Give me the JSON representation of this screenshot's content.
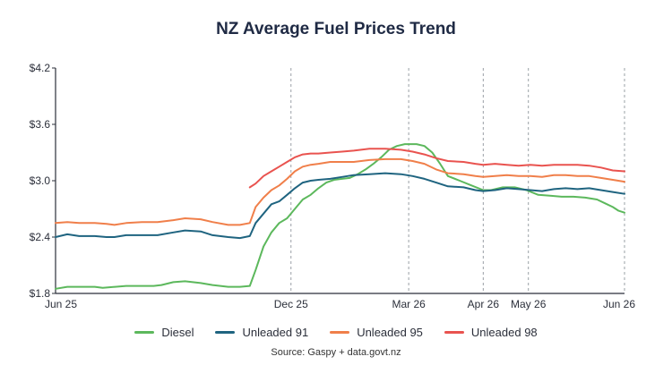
{
  "colors": {
    "diesel": "#5cb85c",
    "unleaded91": "#1f6480",
    "unleaded95": "#f07f4a",
    "unleaded98": "#e9534f",
    "grid": "#9aa0a6",
    "axis": "#2b2f3a"
  },
  "chart_data": {
    "type": "line",
    "title": "NZ Average Fuel Prices Trend",
    "source": "Source: Gaspy + data.govt.nz",
    "xlabel": "",
    "ylabel": "",
    "x_tick_labels": [
      "Jun 25",
      "Dec 25",
      "Mar 26",
      "Apr 26",
      "May 26",
      "Jun 26"
    ],
    "x_tick_positions": [
      0,
      6,
      9,
      10.9,
      12.05,
      14.5
    ],
    "xlim": [
      0,
      14.5
    ],
    "y_tick_labels": [
      "$1.8",
      "$2.4",
      "$3.0",
      "$3.6",
      "$4.2"
    ],
    "y_ticks": [
      1.8,
      2.4,
      3.0,
      3.6,
      4.2
    ],
    "ylim": [
      1.8,
      4.2
    ],
    "grid": "vertical dashed",
    "legend_position": "bottom",
    "series": [
      {
        "name": "Diesel",
        "color_key": "diesel",
        "points": [
          [
            0,
            1.85
          ],
          [
            0.3,
            1.87
          ],
          [
            1,
            1.87
          ],
          [
            1.2,
            1.86
          ],
          [
            1.8,
            1.88
          ],
          [
            2.5,
            1.88
          ],
          [
            2.7,
            1.89
          ],
          [
            3,
            1.92
          ],
          [
            3.3,
            1.93
          ],
          [
            3.7,
            1.91
          ],
          [
            4,
            1.89
          ],
          [
            4.4,
            1.87
          ],
          [
            4.7,
            1.87
          ],
          [
            4.95,
            1.88
          ],
          [
            5.1,
            2.05
          ],
          [
            5.3,
            2.3
          ],
          [
            5.5,
            2.45
          ],
          [
            5.7,
            2.55
          ],
          [
            5.9,
            2.6
          ],
          [
            6.1,
            2.7
          ],
          [
            6.3,
            2.8
          ],
          [
            6.5,
            2.85
          ],
          [
            6.7,
            2.92
          ],
          [
            6.9,
            2.98
          ],
          [
            7.1,
            3.01
          ],
          [
            7.3,
            3.02
          ],
          [
            7.5,
            3.03
          ],
          [
            7.7,
            3.07
          ],
          [
            7.9,
            3.12
          ],
          [
            8.1,
            3.18
          ],
          [
            8.3,
            3.25
          ],
          [
            8.5,
            3.33
          ],
          [
            8.7,
            3.37
          ],
          [
            8.9,
            3.39
          ],
          [
            9.2,
            3.39
          ],
          [
            9.4,
            3.37
          ],
          [
            9.6,
            3.3
          ],
          [
            9.8,
            3.18
          ],
          [
            10,
            3.05
          ],
          [
            10.3,
            3.0
          ],
          [
            10.6,
            2.95
          ],
          [
            10.9,
            2.9
          ],
          [
            11.1,
            2.9
          ],
          [
            11.4,
            2.93
          ],
          [
            11.7,
            2.93
          ],
          [
            12,
            2.9
          ],
          [
            12.3,
            2.85
          ],
          [
            12.6,
            2.84
          ],
          [
            12.9,
            2.83
          ],
          [
            13.2,
            2.83
          ],
          [
            13.5,
            2.82
          ],
          [
            13.8,
            2.8
          ],
          [
            14,
            2.76
          ],
          [
            14.2,
            2.72
          ],
          [
            14.35,
            2.68
          ],
          [
            14.5,
            2.66
          ]
        ]
      },
      {
        "name": "Unleaded 91",
        "color_key": "unleaded91",
        "points": [
          [
            0,
            2.4
          ],
          [
            0.3,
            2.43
          ],
          [
            0.6,
            2.41
          ],
          [
            1,
            2.41
          ],
          [
            1.3,
            2.4
          ],
          [
            1.5,
            2.4
          ],
          [
            1.8,
            2.42
          ],
          [
            2.2,
            2.42
          ],
          [
            2.6,
            2.42
          ],
          [
            3,
            2.45
          ],
          [
            3.3,
            2.47
          ],
          [
            3.7,
            2.46
          ],
          [
            4,
            2.42
          ],
          [
            4.4,
            2.4
          ],
          [
            4.7,
            2.39
          ],
          [
            4.95,
            2.41
          ],
          [
            5.1,
            2.55
          ],
          [
            5.3,
            2.65
          ],
          [
            5.5,
            2.75
          ],
          [
            5.7,
            2.78
          ],
          [
            5.9,
            2.85
          ],
          [
            6.1,
            2.92
          ],
          [
            6.3,
            2.98
          ],
          [
            6.5,
            3.0
          ],
          [
            6.7,
            3.01
          ],
          [
            7,
            3.02
          ],
          [
            7.3,
            3.04
          ],
          [
            7.6,
            3.06
          ],
          [
            8,
            3.07
          ],
          [
            8.4,
            3.08
          ],
          [
            8.8,
            3.07
          ],
          [
            9.1,
            3.05
          ],
          [
            9.4,
            3.02
          ],
          [
            9.7,
            2.98
          ],
          [
            10,
            2.94
          ],
          [
            10.4,
            2.93
          ],
          [
            10.7,
            2.9
          ],
          [
            10.9,
            2.89
          ],
          [
            11.2,
            2.9
          ],
          [
            11.5,
            2.92
          ],
          [
            11.8,
            2.91
          ],
          [
            12.1,
            2.9
          ],
          [
            12.4,
            2.89
          ],
          [
            12.7,
            2.91
          ],
          [
            13,
            2.92
          ],
          [
            13.3,
            2.91
          ],
          [
            13.6,
            2.92
          ],
          [
            13.9,
            2.9
          ],
          [
            14.2,
            2.88
          ],
          [
            14.5,
            2.86
          ]
        ]
      },
      {
        "name": "Unleaded 95",
        "color_key": "unleaded95",
        "points": [
          [
            0,
            2.55
          ],
          [
            0.3,
            2.56
          ],
          [
            0.6,
            2.55
          ],
          [
            1,
            2.55
          ],
          [
            1.3,
            2.54
          ],
          [
            1.5,
            2.53
          ],
          [
            1.8,
            2.55
          ],
          [
            2.2,
            2.56
          ],
          [
            2.6,
            2.56
          ],
          [
            3,
            2.58
          ],
          [
            3.3,
            2.6
          ],
          [
            3.7,
            2.59
          ],
          [
            4,
            2.56
          ],
          [
            4.4,
            2.53
          ],
          [
            4.7,
            2.53
          ],
          [
            4.95,
            2.55
          ],
          [
            5.1,
            2.72
          ],
          [
            5.3,
            2.82
          ],
          [
            5.5,
            2.9
          ],
          [
            5.7,
            2.95
          ],
          [
            5.9,
            3.02
          ],
          [
            6.1,
            3.1
          ],
          [
            6.3,
            3.15
          ],
          [
            6.5,
            3.17
          ],
          [
            6.7,
            3.18
          ],
          [
            7,
            3.2
          ],
          [
            7.3,
            3.2
          ],
          [
            7.6,
            3.2
          ],
          [
            8,
            3.22
          ],
          [
            8.4,
            3.23
          ],
          [
            8.8,
            3.23
          ],
          [
            9.1,
            3.21
          ],
          [
            9.4,
            3.18
          ],
          [
            9.7,
            3.12
          ],
          [
            10,
            3.08
          ],
          [
            10.4,
            3.07
          ],
          [
            10.7,
            3.05
          ],
          [
            10.9,
            3.04
          ],
          [
            11.2,
            3.05
          ],
          [
            11.5,
            3.06
          ],
          [
            11.8,
            3.05
          ],
          [
            12.1,
            3.05
          ],
          [
            12.4,
            3.04
          ],
          [
            12.7,
            3.06
          ],
          [
            13,
            3.06
          ],
          [
            13.3,
            3.05
          ],
          [
            13.6,
            3.05
          ],
          [
            13.9,
            3.03
          ],
          [
            14.2,
            3.01
          ],
          [
            14.5,
            2.99
          ]
        ]
      },
      {
        "name": "Unleaded 98",
        "color_key": "unleaded98",
        "points": [
          [
            4.95,
            2.93
          ],
          [
            5.1,
            2.97
          ],
          [
            5.3,
            3.05
          ],
          [
            5.5,
            3.1
          ],
          [
            5.7,
            3.15
          ],
          [
            5.9,
            3.2
          ],
          [
            6.1,
            3.25
          ],
          [
            6.3,
            3.28
          ],
          [
            6.5,
            3.29
          ],
          [
            6.7,
            3.29
          ],
          [
            7,
            3.3
          ],
          [
            7.3,
            3.31
          ],
          [
            7.6,
            3.32
          ],
          [
            8,
            3.34
          ],
          [
            8.4,
            3.34
          ],
          [
            8.8,
            3.33
          ],
          [
            9.1,
            3.31
          ],
          [
            9.4,
            3.28
          ],
          [
            9.7,
            3.24
          ],
          [
            10,
            3.21
          ],
          [
            10.4,
            3.2
          ],
          [
            10.7,
            3.18
          ],
          [
            10.9,
            3.17
          ],
          [
            11.2,
            3.18
          ],
          [
            11.5,
            3.17
          ],
          [
            11.8,
            3.16
          ],
          [
            12.1,
            3.17
          ],
          [
            12.4,
            3.16
          ],
          [
            12.7,
            3.17
          ],
          [
            13,
            3.17
          ],
          [
            13.3,
            3.17
          ],
          [
            13.6,
            3.16
          ],
          [
            13.9,
            3.14
          ],
          [
            14.2,
            3.11
          ],
          [
            14.5,
            3.1
          ]
        ]
      }
    ]
  }
}
